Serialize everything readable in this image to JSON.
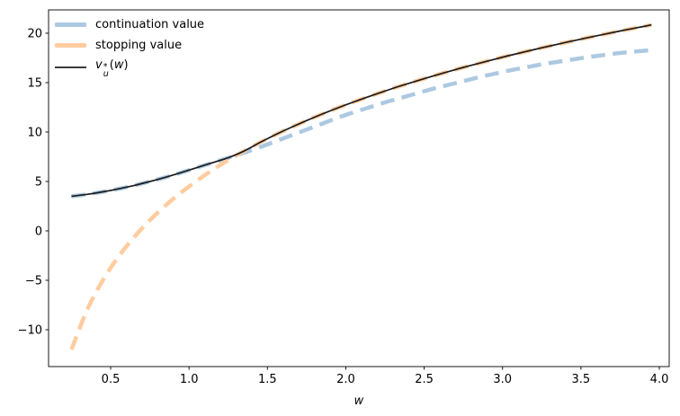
{
  "legend": {
    "items": [
      {
        "label": "continuation value",
        "color": "#acc9e1",
        "style": "dashed-thick"
      },
      {
        "label": "stopping value",
        "color": "#ffcc9f",
        "style": "dashed-thick"
      },
      {
        "label": "v_u^*(w)",
        "color": "#3a3a3a",
        "style": "solid-thin",
        "math": {
          "base": "v",
          "sup": "*",
          "sub": "u",
          "open": "(",
          "var": "w",
          "close": ")"
        }
      }
    ]
  },
  "chart_data": {
    "type": "line",
    "title": "",
    "xlabel": "w",
    "ylabel": "",
    "xlim": [
      0.104,
      4.063
    ],
    "ylim": [
      -13.73,
      22.36
    ],
    "xticks": [
      0.5,
      1.0,
      1.5,
      2.0,
      2.5,
      3.0,
      3.5,
      4.0
    ],
    "xtick_labels": [
      "0.5",
      "1.0",
      "1.5",
      "2.0",
      "2.5",
      "3.0",
      "3.5",
      "4.0"
    ],
    "yticks": [
      -10,
      -5,
      0,
      5,
      10,
      15,
      20
    ],
    "ytick_labels": [
      "−10",
      "−5",
      "0",
      "5",
      "10",
      "15",
      "20"
    ],
    "grid": false,
    "legend_position": "upper-left",
    "x": [
      0.25,
      0.35,
      0.45,
      0.55,
      0.65,
      0.75,
      0.85,
      0.95,
      1.05,
      1.15,
      1.25,
      1.35,
      1.45,
      1.55,
      1.65,
      1.75,
      1.85,
      1.95,
      2.05,
      2.15,
      2.25,
      2.35,
      2.45,
      2.55,
      2.65,
      2.75,
      2.85,
      2.95,
      3.05,
      3.15,
      3.25,
      3.35,
      3.45,
      3.55,
      3.65,
      3.75,
      3.85,
      3.95
    ],
    "series": [
      {
        "id": "continuation-value",
        "name": "continuation value",
        "color": "#acc9e1",
        "linewidth": 4.5,
        "dash": [
          15.5,
          8.5
        ],
        "values": [
          3.5,
          3.7,
          3.95,
          4.25,
          4.6,
          5.0,
          5.42,
          5.9,
          6.4,
          6.9,
          7.4,
          7.9,
          8.45,
          9.05,
          9.65,
          10.25,
          10.85,
          11.45,
          12.0,
          12.5,
          13.0,
          13.45,
          13.9,
          14.35,
          14.75,
          15.15,
          15.55,
          15.9,
          16.25,
          16.55,
          16.85,
          17.1,
          17.35,
          17.6,
          17.8,
          18.0,
          18.15,
          18.3
        ]
      },
      {
        "id": "stopping-value",
        "name": "stopping value",
        "color": "#ffcc9f",
        "linewidth": 4.5,
        "dash": [
          15.5,
          8.5
        ],
        "values": [
          -12.0,
          -7.99,
          -5.0,
          -2.61,
          -0.63,
          1.08,
          2.57,
          3.89,
          5.08,
          6.16,
          7.16,
          8.07,
          8.92,
          9.72,
          10.46,
          11.16,
          11.82,
          12.45,
          13.04,
          13.61,
          14.15,
          14.67,
          15.16,
          15.64,
          16.1,
          16.54,
          16.96,
          17.37,
          17.77,
          18.15,
          18.52,
          18.88,
          19.23,
          19.57,
          19.9,
          20.22,
          20.53,
          20.84
        ]
      },
      {
        "id": "v-star",
        "name": "v_u^*(w)",
        "color": "#1a1a1a",
        "linewidth": 1.7,
        "dash": null,
        "values": [
          3.5,
          3.7,
          3.95,
          4.25,
          4.6,
          5.0,
          5.42,
          5.9,
          6.4,
          6.9,
          7.4,
          8.07,
          8.92,
          9.72,
          10.46,
          11.16,
          11.82,
          12.45,
          13.04,
          13.61,
          14.15,
          14.67,
          15.16,
          15.64,
          16.1,
          16.54,
          16.96,
          17.37,
          17.77,
          18.15,
          18.52,
          18.88,
          19.23,
          19.57,
          19.9,
          20.22,
          20.53,
          20.84
        ]
      }
    ]
  }
}
